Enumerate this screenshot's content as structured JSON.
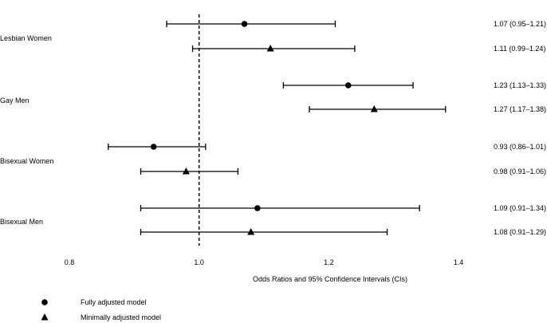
{
  "chart_data": {
    "type": "forest",
    "xlabel": "Odds Ratios and 95% Confidence Intervals (CIs)",
    "xlim": [
      0.8,
      1.4
    ],
    "xticks": [
      "0.8",
      "1.0",
      "1.2",
      "1.4"
    ],
    "reference_line": 1.0,
    "grid": false,
    "legend_position": "bottom-left",
    "groups": [
      "Lesbian Women",
      "Gay Men",
      "Bisexual Women",
      "Bisexual Men"
    ],
    "series": [
      {
        "name": "Fully adjusted model",
        "marker": "circle"
      },
      {
        "name": "Minimally adjusted model",
        "marker": "triangle"
      }
    ],
    "estimates": [
      {
        "group": "Lesbian Women",
        "model": "Fully adjusted model",
        "or": 1.07,
        "lower": 0.95,
        "upper": 1.21,
        "label": "1.07 (0.95–1.21)"
      },
      {
        "group": "Lesbian Women",
        "model": "Minimally adjusted model",
        "or": 1.11,
        "lower": 0.99,
        "upper": 1.24,
        "label": "1.11 (0.99–1.24)"
      },
      {
        "group": "Gay Men",
        "model": "Fully adjusted model",
        "or": 1.23,
        "lower": 1.13,
        "upper": 1.33,
        "label": "1.23 (1.13–1.33)"
      },
      {
        "group": "Gay Men",
        "model": "Minimally adjusted model",
        "or": 1.27,
        "lower": 1.17,
        "upper": 1.38,
        "label": "1.27 (1.17–1.38)"
      },
      {
        "group": "Bisexual Women",
        "model": "Fully adjusted model",
        "or": 0.93,
        "lower": 0.86,
        "upper": 1.01,
        "label": "0.93 (0.86–1.01)"
      },
      {
        "group": "Bisexual Women",
        "model": "Minimally adjusted model",
        "or": 0.98,
        "lower": 0.91,
        "upper": 1.06,
        "label": "0.98 (0.91–1.06)"
      },
      {
        "group": "Bisexual Men",
        "model": "Fully adjusted model",
        "or": 1.09,
        "lower": 0.91,
        "upper": 1.34,
        "label": "1.09 (0.91–1.34)"
      },
      {
        "group": "Bisexual Men",
        "model": "Minimally adjusted model",
        "or": 1.08,
        "lower": 0.91,
        "upper": 1.29,
        "label": "1.08 (0.91–1.29)"
      }
    ]
  }
}
